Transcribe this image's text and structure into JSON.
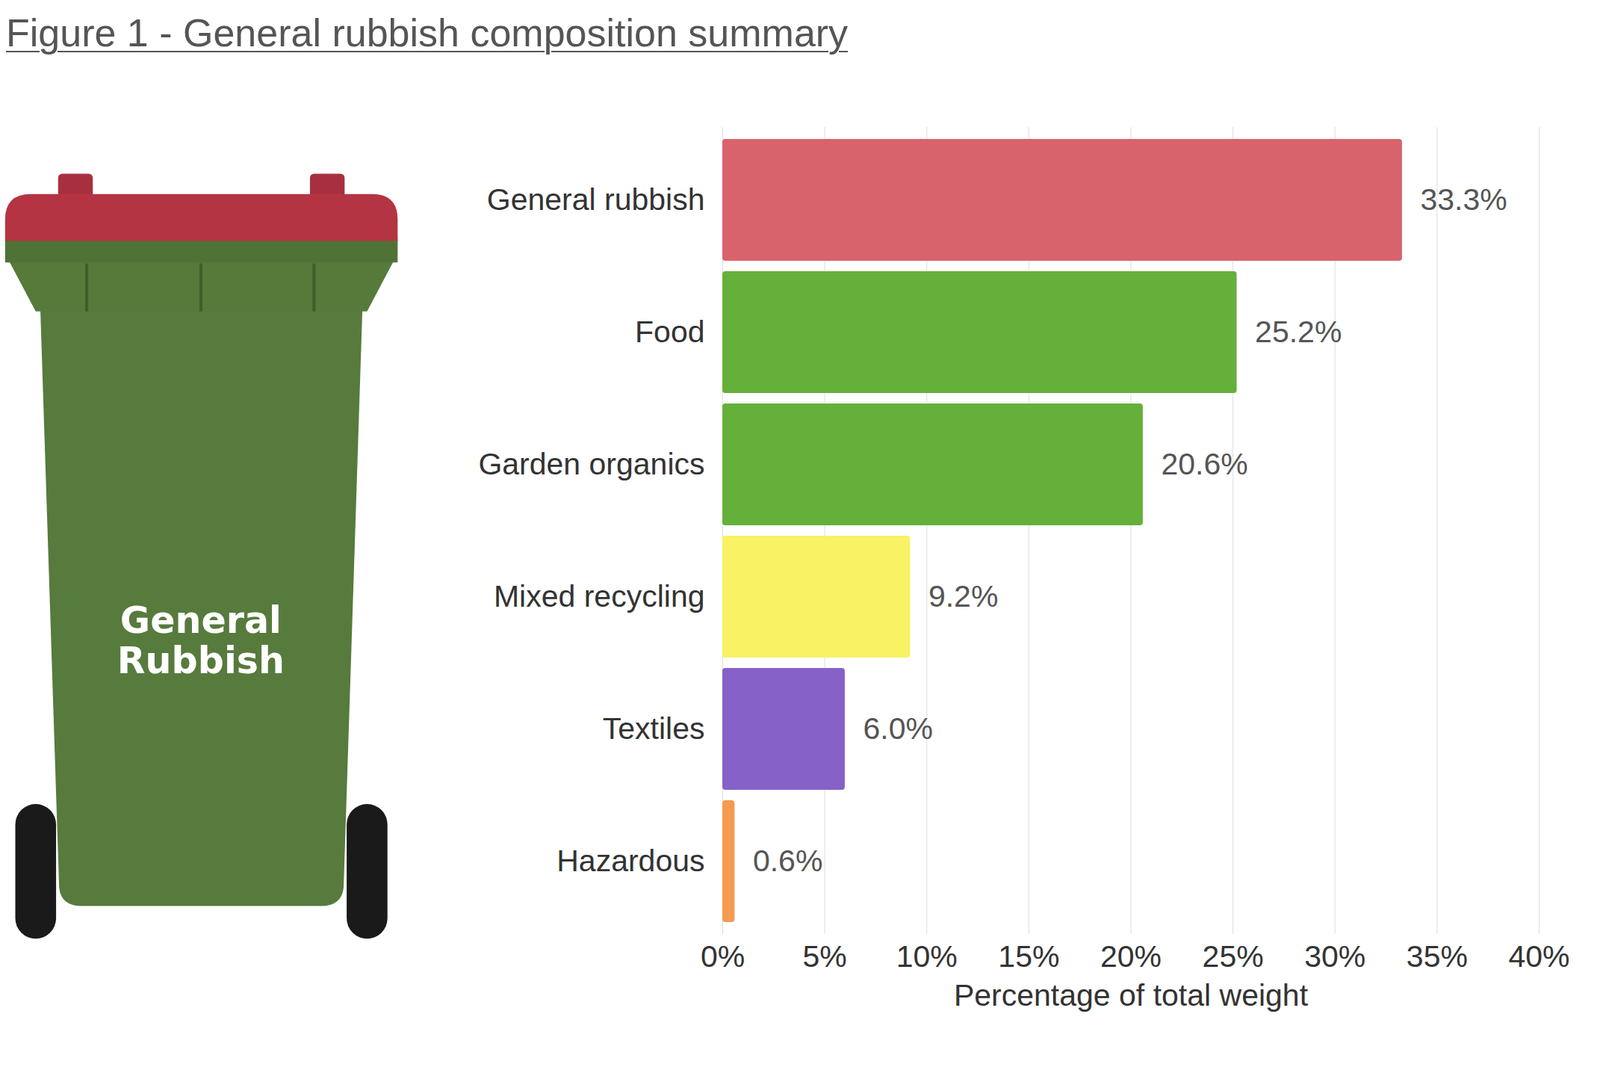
{
  "chart_data": {
    "type": "bar",
    "title": "Figure 1 - General rubbish composition summary",
    "orientation": "horizontal",
    "categories": [
      "General rubbish",
      "Food",
      "Garden organics",
      "Mixed recycling",
      "Textiles",
      "Hazardous"
    ],
    "values": [
      33.3,
      25.2,
      20.6,
      9.2,
      6.0,
      0.6
    ],
    "value_labels": [
      "33.3%",
      "25.2%",
      "20.6%",
      "9.2%",
      "6.0%",
      "0.6%"
    ],
    "colors": [
      "#d9636d",
      "#65b03b",
      "#65b03b",
      "#f8f264",
      "#8561c8",
      "#f59a52"
    ],
    "data_labels": true,
    "xlabel": "Percentage of total weight",
    "xlim": [
      0,
      40
    ],
    "xticks": [
      {
        "value": 0,
        "label": "0%"
      },
      {
        "value": 5,
        "label": "5%"
      },
      {
        "value": 10,
        "label": "10%"
      },
      {
        "value": 15,
        "label": "15%"
      },
      {
        "value": 20,
        "label": "20%"
      },
      {
        "value": 25,
        "label": "25%"
      },
      {
        "value": 30,
        "label": "30%"
      },
      {
        "value": 35,
        "label": "35%"
      },
      {
        "value": 40,
        "label": "40%"
      }
    ],
    "grid": true,
    "annotations": [
      "General Rubbish"
    ]
  }
}
